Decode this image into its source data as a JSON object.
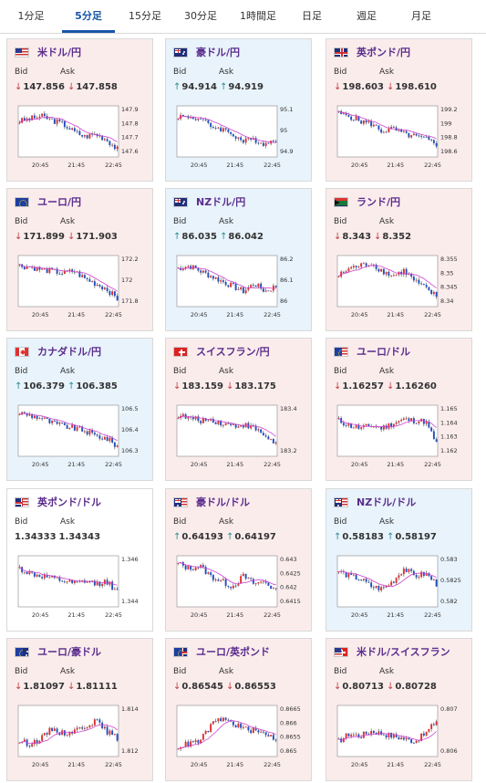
{
  "tabs": [
    {
      "label": "1分足",
      "active": false
    },
    {
      "label": "5分足",
      "active": true
    },
    {
      "label": "15分足",
      "active": false
    },
    {
      "label": "30分足",
      "active": false
    },
    {
      "label": "1時間足",
      "active": false
    },
    {
      "label": "日足",
      "active": false
    },
    {
      "label": "週足",
      "active": false
    },
    {
      "label": "月足",
      "active": false
    }
  ],
  "bid_label": "Bid",
  "ask_label": "Ask",
  "colors": {
    "up_arrow": "#2a8c8c",
    "down_arrow": "#c43c3c",
    "bull_candle": "#e03030",
    "bear_candle": "#2050c0",
    "ma": "#d040d0",
    "pair_text": "#5a2c8c"
  },
  "cards": [
    {
      "pair": "米ドル/円",
      "flag": "us",
      "bg": "pink",
      "bid_dir": "down",
      "bid": "147.856",
      "ask_dir": "down",
      "ask": "147.858",
      "y_labels": [
        "147.9",
        "147.8",
        "147.7",
        "147.6"
      ]
    },
    {
      "pair": "豪ドル/円",
      "flag": "au",
      "bg": "blue",
      "bid_dir": "up",
      "bid": "94.914",
      "ask_dir": "up",
      "ask": "94.919",
      "y_labels": [
        "95.1",
        "95",
        "94.9"
      ]
    },
    {
      "pair": "英ポンド/円",
      "flag": "gb",
      "bg": "pink",
      "bid_dir": "down",
      "bid": "198.603",
      "ask_dir": "down",
      "ask": "198.610",
      "y_labels": [
        "199.2",
        "199",
        "198.8",
        "198.6"
      ]
    },
    {
      "pair": "ユーロ/円",
      "flag": "eu",
      "bg": "pink",
      "bid_dir": "down",
      "bid": "171.899",
      "ask_dir": "down",
      "ask": "171.903",
      "y_labels": [
        "172.2",
        "172",
        "171.8"
      ]
    },
    {
      "pair": "NZドル/円",
      "flag": "nz",
      "bg": "blue",
      "bid_dir": "up",
      "bid": "86.035",
      "ask_dir": "up",
      "ask": "86.042",
      "y_labels": [
        "86.2",
        "86.1",
        "86"
      ]
    },
    {
      "pair": "ランド/円",
      "flag": "za",
      "bg": "pink",
      "bid_dir": "down",
      "bid": "8.343",
      "ask_dir": "down",
      "ask": "8.352",
      "y_labels": [
        "8.355",
        "8.35",
        "8.345",
        "8.34"
      ]
    },
    {
      "pair": "カナダドル/円",
      "flag": "ca",
      "bg": "blue",
      "bid_dir": "up",
      "bid": "106.379",
      "ask_dir": "up",
      "ask": "106.385",
      "y_labels": [
        "106.5",
        "106.4",
        "106.3"
      ]
    },
    {
      "pair": "スイスフラン/円",
      "flag": "ch",
      "bg": "pink",
      "bid_dir": "down",
      "bid": "183.159",
      "ask_dir": "down",
      "ask": "183.175",
      "y_labels": [
        "183.4",
        "183.2"
      ]
    },
    {
      "pair": "ユーロ/ドル",
      "flag": "euus",
      "bg": "pink",
      "bid_dir": "down",
      "bid": "1.16257",
      "ask_dir": "down",
      "ask": "1.16260",
      "y_labels": [
        "1.165",
        "1.164",
        "1.163",
        "1.162"
      ]
    },
    {
      "pair": "英ポンド/ドル",
      "flag": "gbus",
      "bg": "white",
      "bid_dir": "none",
      "bid": "1.34333",
      "ask_dir": "none",
      "ask": "1.34343",
      "y_labels": [
        "1.346",
        "1.344"
      ]
    },
    {
      "pair": "豪ドル/ドル",
      "flag": "auus",
      "bg": "pink",
      "bid_dir": "up",
      "bid": "0.64193",
      "ask_dir": "up",
      "ask": "0.64197",
      "y_labels": [
        "0.643",
        "0.6425",
        "0.642",
        "0.6415"
      ]
    },
    {
      "pair": "NZドル/ドル",
      "flag": "nzus",
      "bg": "blue",
      "bid_dir": "up",
      "bid": "0.58183",
      "ask_dir": "up",
      "ask": "0.58197",
      "y_labels": [
        "0.583",
        "0.5825",
        "0.582"
      ]
    },
    {
      "pair": "ユーロ/豪ドル",
      "flag": "euau",
      "bg": "pink",
      "bid_dir": "down",
      "bid": "1.81097",
      "ask_dir": "down",
      "ask": "1.81111",
      "y_labels": [
        "1.814",
        "1.812"
      ]
    },
    {
      "pair": "ユーロ/英ポンド",
      "flag": "eugb",
      "bg": "pink",
      "bid_dir": "down",
      "bid": "0.86545",
      "ask_dir": "down",
      "ask": "0.86553",
      "y_labels": [
        "0.8665",
        "0.866",
        "0.8655",
        "0.865"
      ]
    },
    {
      "pair": "米ドル/スイスフラン",
      "flag": "usch",
      "bg": "pink",
      "bid_dir": "down",
      "bid": "0.80713",
      "ask_dir": "down",
      "ask": "0.80728",
      "y_labels": [
        "0.807",
        "0.806"
      ]
    }
  ],
  "x_labels": [
    "20:45",
    "21:45",
    "22:45"
  ]
}
